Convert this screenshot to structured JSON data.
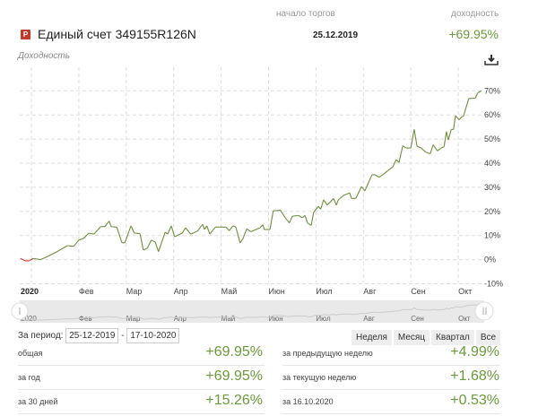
{
  "header": {
    "col_start": "начало торгов",
    "col_yield": "доходность",
    "icon_letter": "P",
    "title": "Единый счет 349155R126N",
    "start_date": "25.12.2019",
    "total_yield": "+69.95%"
  },
  "chart_title": "Доходность",
  "period": {
    "label": "За период:",
    "from": "25-12-2019",
    "sep": "-",
    "to": "17-10-2020",
    "buttons": [
      "Неделя",
      "Месяц",
      "Квартал",
      "Все"
    ]
  },
  "stats_left": [
    {
      "label": "общая",
      "value": "+69.95%"
    },
    {
      "label": "за год",
      "value": "+69.95%"
    },
    {
      "label": "за 30 дней",
      "value": "+15.26%"
    }
  ],
  "stats_right": [
    {
      "label": "за предыдущую неделю",
      "value": "+4.99%"
    },
    {
      "label": "за текущую неделю",
      "value": "+1.68%"
    },
    {
      "label": "за 16.10.2020",
      "value": "+0.53%"
    }
  ],
  "colors": {
    "line": "#6e8f3e",
    "negative": "#d33",
    "accent": "#6a9a3a"
  },
  "chart_data": {
    "type": "line",
    "title": "Доходность",
    "xlabel": "",
    "ylabel": "",
    "x_unit": "months since 2020-01-01",
    "x_ticks": [
      {
        "x": 0,
        "label": "2020"
      },
      {
        "x": 1,
        "label": "Фев"
      },
      {
        "x": 2,
        "label": "Мар"
      },
      {
        "x": 3,
        "label": "Апр"
      },
      {
        "x": 4,
        "label": "Май"
      },
      {
        "x": 5,
        "label": "Июн"
      },
      {
        "x": 6,
        "label": "Июл"
      },
      {
        "x": 7,
        "label": "Авг"
      },
      {
        "x": 8,
        "label": "Сен"
      },
      {
        "x": 9,
        "label": "Окт"
      }
    ],
    "y_ticks": [
      70,
      60,
      50,
      40,
      30,
      20,
      10,
      0,
      -10
    ],
    "y_tick_suffix": "%",
    "ylim": [
      -10,
      70
    ],
    "xlim": [
      -0.23,
      9.5
    ],
    "grid": true,
    "series": [
      {
        "name": "Доходность",
        "points": [
          [
            -0.23,
            0.5
          ],
          [
            -0.13,
            -0.5
          ],
          [
            -0.05,
            -0.5
          ],
          [
            0.04,
            0.5
          ],
          [
            0.19,
            0
          ],
          [
            0.34,
            1.3
          ],
          [
            0.53,
            3.2
          ],
          [
            0.76,
            5.8
          ],
          [
            0.89,
            5.5
          ],
          [
            1.0,
            8.1
          ],
          [
            1.1,
            8.8
          ],
          [
            1.21,
            11
          ],
          [
            1.32,
            10.6
          ],
          [
            1.46,
            13.7
          ],
          [
            1.55,
            13.7
          ],
          [
            1.64,
            16
          ],
          [
            1.68,
            13.7
          ],
          [
            1.8,
            13.5
          ],
          [
            1.91,
            7
          ],
          [
            1.97,
            7
          ],
          [
            2.1,
            14
          ],
          [
            2.17,
            11
          ],
          [
            2.29,
            10.8
          ],
          [
            2.36,
            4
          ],
          [
            2.44,
            4.7
          ],
          [
            2.53,
            8.1
          ],
          [
            2.61,
            7.3
          ],
          [
            2.68,
            3.3
          ],
          [
            2.82,
            11.4
          ],
          [
            2.87,
            10.6
          ],
          [
            2.95,
            14
          ],
          [
            3.02,
            9.5
          ],
          [
            3.18,
            11
          ],
          [
            3.25,
            13.2
          ],
          [
            3.36,
            10.6
          ],
          [
            3.5,
            11.8
          ],
          [
            3.61,
            14.7
          ],
          [
            3.65,
            12.5
          ],
          [
            3.7,
            14
          ],
          [
            3.76,
            10.6
          ],
          [
            3.88,
            13.5
          ],
          [
            4.1,
            13.5
          ],
          [
            4.17,
            12
          ],
          [
            4.25,
            14
          ],
          [
            4.31,
            13.5
          ],
          [
            4.4,
            6.9
          ],
          [
            4.46,
            8.7
          ],
          [
            4.54,
            12.8
          ],
          [
            4.63,
            11.6
          ],
          [
            4.82,
            13.2
          ],
          [
            4.88,
            14.5
          ],
          [
            4.91,
            12.5
          ],
          [
            5.03,
            12.5
          ],
          [
            5.1,
            20.3
          ],
          [
            5.16,
            20.3
          ],
          [
            5.25,
            20.5
          ],
          [
            5.35,
            17.4
          ],
          [
            5.44,
            15.2
          ],
          [
            5.5,
            18
          ],
          [
            5.63,
            18.3
          ],
          [
            5.71,
            17.4
          ],
          [
            5.77,
            18.3
          ],
          [
            5.82,
            15.2
          ],
          [
            5.9,
            14.2
          ],
          [
            5.95,
            19.6
          ],
          [
            6.05,
            22.1
          ],
          [
            6.1,
            20.9
          ],
          [
            6.16,
            24.8
          ],
          [
            6.24,
            22.6
          ],
          [
            6.37,
            25.4
          ],
          [
            6.43,
            22.6
          ],
          [
            6.47,
            24.8
          ],
          [
            6.58,
            26.6
          ],
          [
            6.71,
            27.7
          ],
          [
            6.75,
            25.4
          ],
          [
            6.84,
            25.4
          ],
          [
            6.96,
            30.3
          ],
          [
            7.03,
            28.5
          ],
          [
            7.18,
            35.2
          ],
          [
            7.24,
            35.2
          ],
          [
            7.33,
            34.2
          ],
          [
            7.41,
            35.2
          ],
          [
            7.52,
            37
          ],
          [
            7.62,
            38.5
          ],
          [
            7.69,
            41.5
          ],
          [
            7.75,
            40.3
          ],
          [
            7.83,
            47.2
          ],
          [
            7.9,
            46.3
          ],
          [
            8.0,
            46.3
          ],
          [
            8.07,
            54
          ],
          [
            8.13,
            47
          ],
          [
            8.22,
            46.3
          ],
          [
            8.26,
            45.5
          ],
          [
            8.32,
            44.5
          ],
          [
            8.41,
            43.9
          ],
          [
            8.47,
            47.6
          ],
          [
            8.56,
            45.1
          ],
          [
            8.64,
            46.3
          ],
          [
            8.7,
            46.8
          ],
          [
            8.75,
            53.1
          ],
          [
            8.79,
            49.6
          ],
          [
            8.85,
            54
          ],
          [
            8.9,
            54
          ],
          [
            8.94,
            59.7
          ],
          [
            9.02,
            58
          ],
          [
            9.07,
            59.2
          ],
          [
            9.11,
            59.5
          ],
          [
            9.22,
            66.8
          ],
          [
            9.36,
            67
          ],
          [
            9.41,
            69.2
          ],
          [
            9.49,
            70
          ]
        ]
      }
    ]
  }
}
